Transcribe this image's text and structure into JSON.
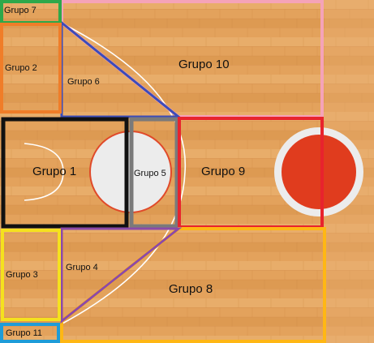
{
  "colors": {
    "wood_base": "#e3a25c",
    "wood_light": "#ebb473",
    "wood_dark": "#cf8a45",
    "court_line": "#ffffff",
    "ball_red": "#e03c1e"
  },
  "groups": [
    {
      "id": "g1",
      "label": "Grupo 1",
      "color": "#111111",
      "shape": "rect"
    },
    {
      "id": "g2",
      "label": "Grupo 2",
      "color": "#f07d28",
      "shape": "rect"
    },
    {
      "id": "g3",
      "label": "Grupo 3",
      "color": "#f5e11e",
      "shape": "rect"
    },
    {
      "id": "g4",
      "label": "Grupo 4",
      "color": "#8c4aa8",
      "shape": "triangle"
    },
    {
      "id": "g5",
      "label": "Grupo 5",
      "color": "#7a7a7a",
      "shape": "rect"
    },
    {
      "id": "g6",
      "label": "Grupo 6",
      "color": "#3c4cb8",
      "shape": "triangle"
    },
    {
      "id": "g7",
      "label": "Grupo 7",
      "color": "#2da84a",
      "shape": "rect"
    },
    {
      "id": "g8",
      "label": "Grupo 8",
      "color": "#ffb714",
      "shape": "polygon"
    },
    {
      "id": "g9",
      "label": "Grupo 9",
      "color": "#e8232d",
      "shape": "rect"
    },
    {
      "id": "g10",
      "label": "Grupo 10",
      "color": "#f5a3b8",
      "shape": "polygon"
    },
    {
      "id": "g11",
      "label": "Grupo 11",
      "color": "#1e9cd8",
      "shape": "rect"
    }
  ]
}
